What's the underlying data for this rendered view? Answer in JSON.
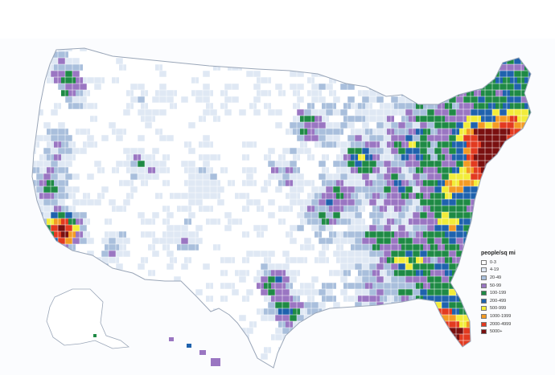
{
  "legend": {
    "title": "people/sq mi",
    "classes": [
      {
        "label": "0-3",
        "color": "#ffffff"
      },
      {
        "label": "4-19",
        "color": "#dfe8f4"
      },
      {
        "label": "20-49",
        "color": "#a9bfdc"
      },
      {
        "label": "50-99",
        "color": "#9a76c2"
      },
      {
        "label": "100-199",
        "color": "#1f8a45"
      },
      {
        "label": "200-499",
        "color": "#1f62ad"
      },
      {
        "label": "500-999",
        "color": "#f2ec3a"
      },
      {
        "label": "1000-1999",
        "color": "#f39a24"
      },
      {
        "label": "2000-4999",
        "color": "#e23a20"
      },
      {
        "label": "5000+",
        "color": "#7a1010"
      }
    ]
  },
  "map": {
    "outline_color": "#9aa6b8",
    "border_color": "#ffffff"
  }
}
